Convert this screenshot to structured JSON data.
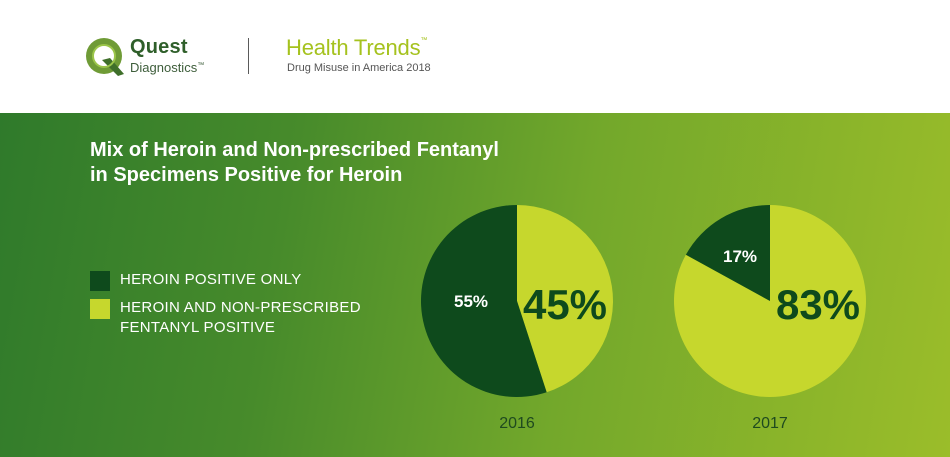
{
  "header": {
    "brand_name": "Quest",
    "brand_sub": "Diagnostics",
    "brand_sub_tm": "™",
    "report_title": "Health Trends",
    "report_title_tm": "™",
    "report_sub": "Drug Misuse in America 2018"
  },
  "chart_data": {
    "type": "pie",
    "title": "Mix of Heroin and Non-prescribed Fentanyl in Specimens Positive for Heroin",
    "title_lines": [
      "Mix of Heroin and Non-prescribed Fentanyl",
      "in Specimens Positive for Heroin"
    ],
    "legend": [
      {
        "label_lines": [
          "HEROIN POSITIVE ONLY"
        ],
        "color": "#0e4a1c"
      },
      {
        "label_lines": [
          "HEROIN AND NON-PRESCRIBED",
          "FENTANYL POSITIVE"
        ],
        "color": "#c6d72d"
      }
    ],
    "pies": [
      {
        "year": "2016",
        "slices": [
          {
            "value": 55,
            "label": "55%",
            "color": "#0e4a1c"
          },
          {
            "value": 45,
            "label": "45%",
            "color": "#c6d72d"
          }
        ]
      },
      {
        "year": "2017",
        "slices": [
          {
            "value": 17,
            "label": "17%",
            "color": "#0e4a1c"
          },
          {
            "value": 83,
            "label": "83%",
            "color": "#c6d72d"
          }
        ]
      }
    ]
  },
  "colors": {
    "dark_green": "#0e4a1c",
    "lime": "#c6d72d",
    "label_dark": "#0e4a1c",
    "year_label": "#1f4a1f"
  }
}
